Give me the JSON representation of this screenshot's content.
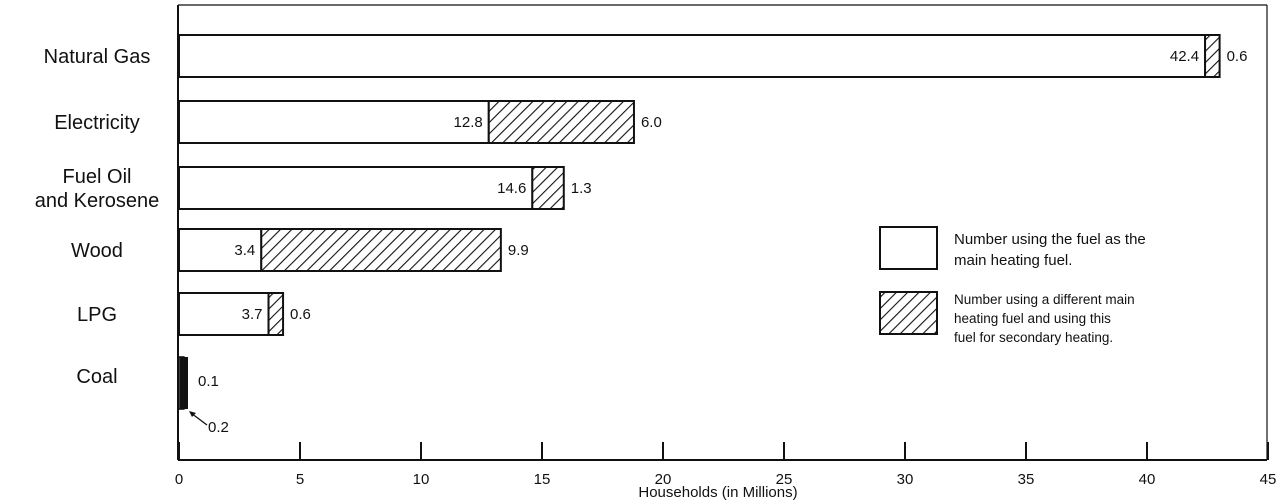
{
  "chart_data": {
    "type": "bar",
    "orientation": "horizontal",
    "stacked": true,
    "categories": [
      "Natural Gas",
      "Electricity",
      "Fuel Oil\nand Kerosene",
      "Wood",
      "LPG",
      "Coal"
    ],
    "series": [
      {
        "name": "Number using the fuel as the\nmain heating fuel.",
        "values": [
          42.4,
          12.8,
          14.6,
          3.4,
          3.7,
          0.2
        ],
        "fill": "none"
      },
      {
        "name": "Number using a different main\nheating fuel and using this\nfuel for secondary heating.",
        "values": [
          0.6,
          6.0,
          1.3,
          9.9,
          0.6,
          0.1
        ],
        "fill": "hatched"
      }
    ],
    "data_labels": {
      "main": [
        "42.4",
        "12.8",
        "14.6",
        "3.4",
        "3.7",
        "0.2"
      ],
      "secondary": [
        "0.6",
        "6.0",
        "1.3",
        "9.9",
        "0.6",
        "0.1"
      ]
    },
    "xlabel": "Households (in Millions)",
    "ylabel": "",
    "title": "",
    "xlim": [
      0,
      45
    ],
    "xticks": [
      "0",
      "5",
      "10",
      "15",
      "20",
      "25",
      "30",
      "35",
      "40",
      "45"
    ],
    "legend_position": "right",
    "colors": {
      "ink": "#111111",
      "background": "#ffffff"
    }
  }
}
